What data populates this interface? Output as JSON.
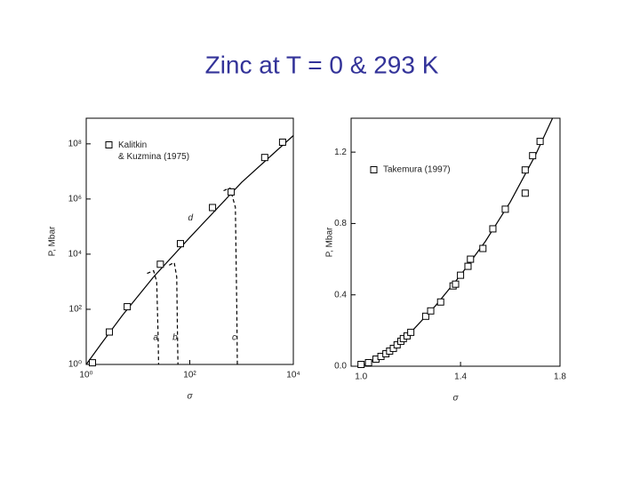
{
  "title": "Zinc at T = 0 & 293 K",
  "chart_data": [
    {
      "type": "scatter",
      "xlabel": "σ",
      "ylabel": "P, Mbar",
      "xlog": true,
      "ylog": true,
      "xlim": [
        1,
        10000
      ],
      "ylim": [
        1,
        850000000
      ],
      "xticks": [
        {
          "value": 1,
          "label": "10⁰"
        },
        {
          "value": 100,
          "label": "10²"
        },
        {
          "value": 10000,
          "label": "10⁴"
        }
      ],
      "yticks": [
        {
          "value": 1,
          "label": "10⁰"
        },
        {
          "value": 100,
          "label": "10²"
        },
        {
          "value": 10000,
          "label": "10⁴"
        },
        {
          "value": 1000000,
          "label": "10⁶"
        },
        {
          "value": 100000000,
          "label": "10⁸"
        }
      ],
      "legend": "upper left",
      "series": [
        {
          "name": "Kalitkin & Kuzmina (1975)",
          "color": "#000000",
          "x": [
            1.32,
            2.8,
            6.2,
            27,
            66,
            275,
            630,
            2800,
            6200
          ],
          "values": [
            1.15,
            15,
            124,
            4300,
            24000,
            490000,
            1800000,
            32000000,
            115000000
          ]
        }
      ],
      "lines": [
        {
          "label": "d",
          "dash": false,
          "x": [
            1,
            2,
            5,
            20,
            100,
            1000,
            10000
          ],
          "values": [
            1,
            6,
            60,
            1500,
            40000,
            4000000,
            200000000
          ]
        },
        {
          "label": "a",
          "dash": true,
          "x": [
            15,
            20,
            23,
            24.5,
            25
          ],
          "values": [
            2000,
            2500,
            1000,
            10,
            1
          ]
        },
        {
          "label": "b",
          "dash": true,
          "x": [
            40,
            50,
            56,
            58,
            59
          ],
          "values": [
            4000,
            5000,
            1500,
            10,
            1
          ]
        },
        {
          "label": "c",
          "dash": true,
          "x": [
            450,
            600,
            760,
            810,
            830
          ],
          "values": [
            2000000,
            2500000,
            500000,
            100,
            1
          ]
        }
      ]
    },
    {
      "type": "scatter",
      "xlabel": "σ",
      "ylabel": "P, Mbar",
      "xlog": false,
      "ylog": false,
      "xlim": [
        0.96,
        1.8
      ],
      "ylim": [
        0,
        1.39
      ],
      "xticks": [
        {
          "value": 1.0,
          "label": "1.0"
        },
        {
          "value": 1.4,
          "label": "1.4"
        },
        {
          "value": 1.8,
          "label": "1.8"
        }
      ],
      "yticks": [
        {
          "value": 0,
          "label": "0.0"
        },
        0.4,
        0.8,
        1.2
      ],
      "legend": "upper left",
      "series": [
        {
          "name": "Takemura (1997)",
          "color": "#000000",
          "x": [
            1.0,
            1.03,
            1.06,
            1.08,
            1.1,
            1.115,
            1.13,
            1.145,
            1.16,
            1.17,
            1.185,
            1.2,
            1.26,
            1.28,
            1.32,
            1.37,
            1.38,
            1.4,
            1.43,
            1.44,
            1.49,
            1.53,
            1.58,
            1.66,
            1.66,
            1.69,
            1.72
          ],
          "values": [
            0.01,
            0.02,
            0.04,
            0.055,
            0.07,
            0.085,
            0.1,
            0.12,
            0.14,
            0.155,
            0.17,
            0.19,
            0.28,
            0.31,
            0.36,
            0.45,
            0.46,
            0.51,
            0.56,
            0.6,
            0.66,
            0.77,
            0.88,
            0.97,
            1.1,
            1.18,
            1.26
          ]
        }
      ],
      "lines": [
        {
          "dash": false,
          "x": [
            1.0,
            1.1,
            1.2,
            1.3,
            1.4,
            1.5,
            1.6,
            1.7,
            1.77
          ],
          "values": [
            0,
            0.065,
            0.19,
            0.34,
            0.51,
            0.7,
            0.92,
            1.18,
            1.39
          ]
        }
      ]
    }
  ]
}
